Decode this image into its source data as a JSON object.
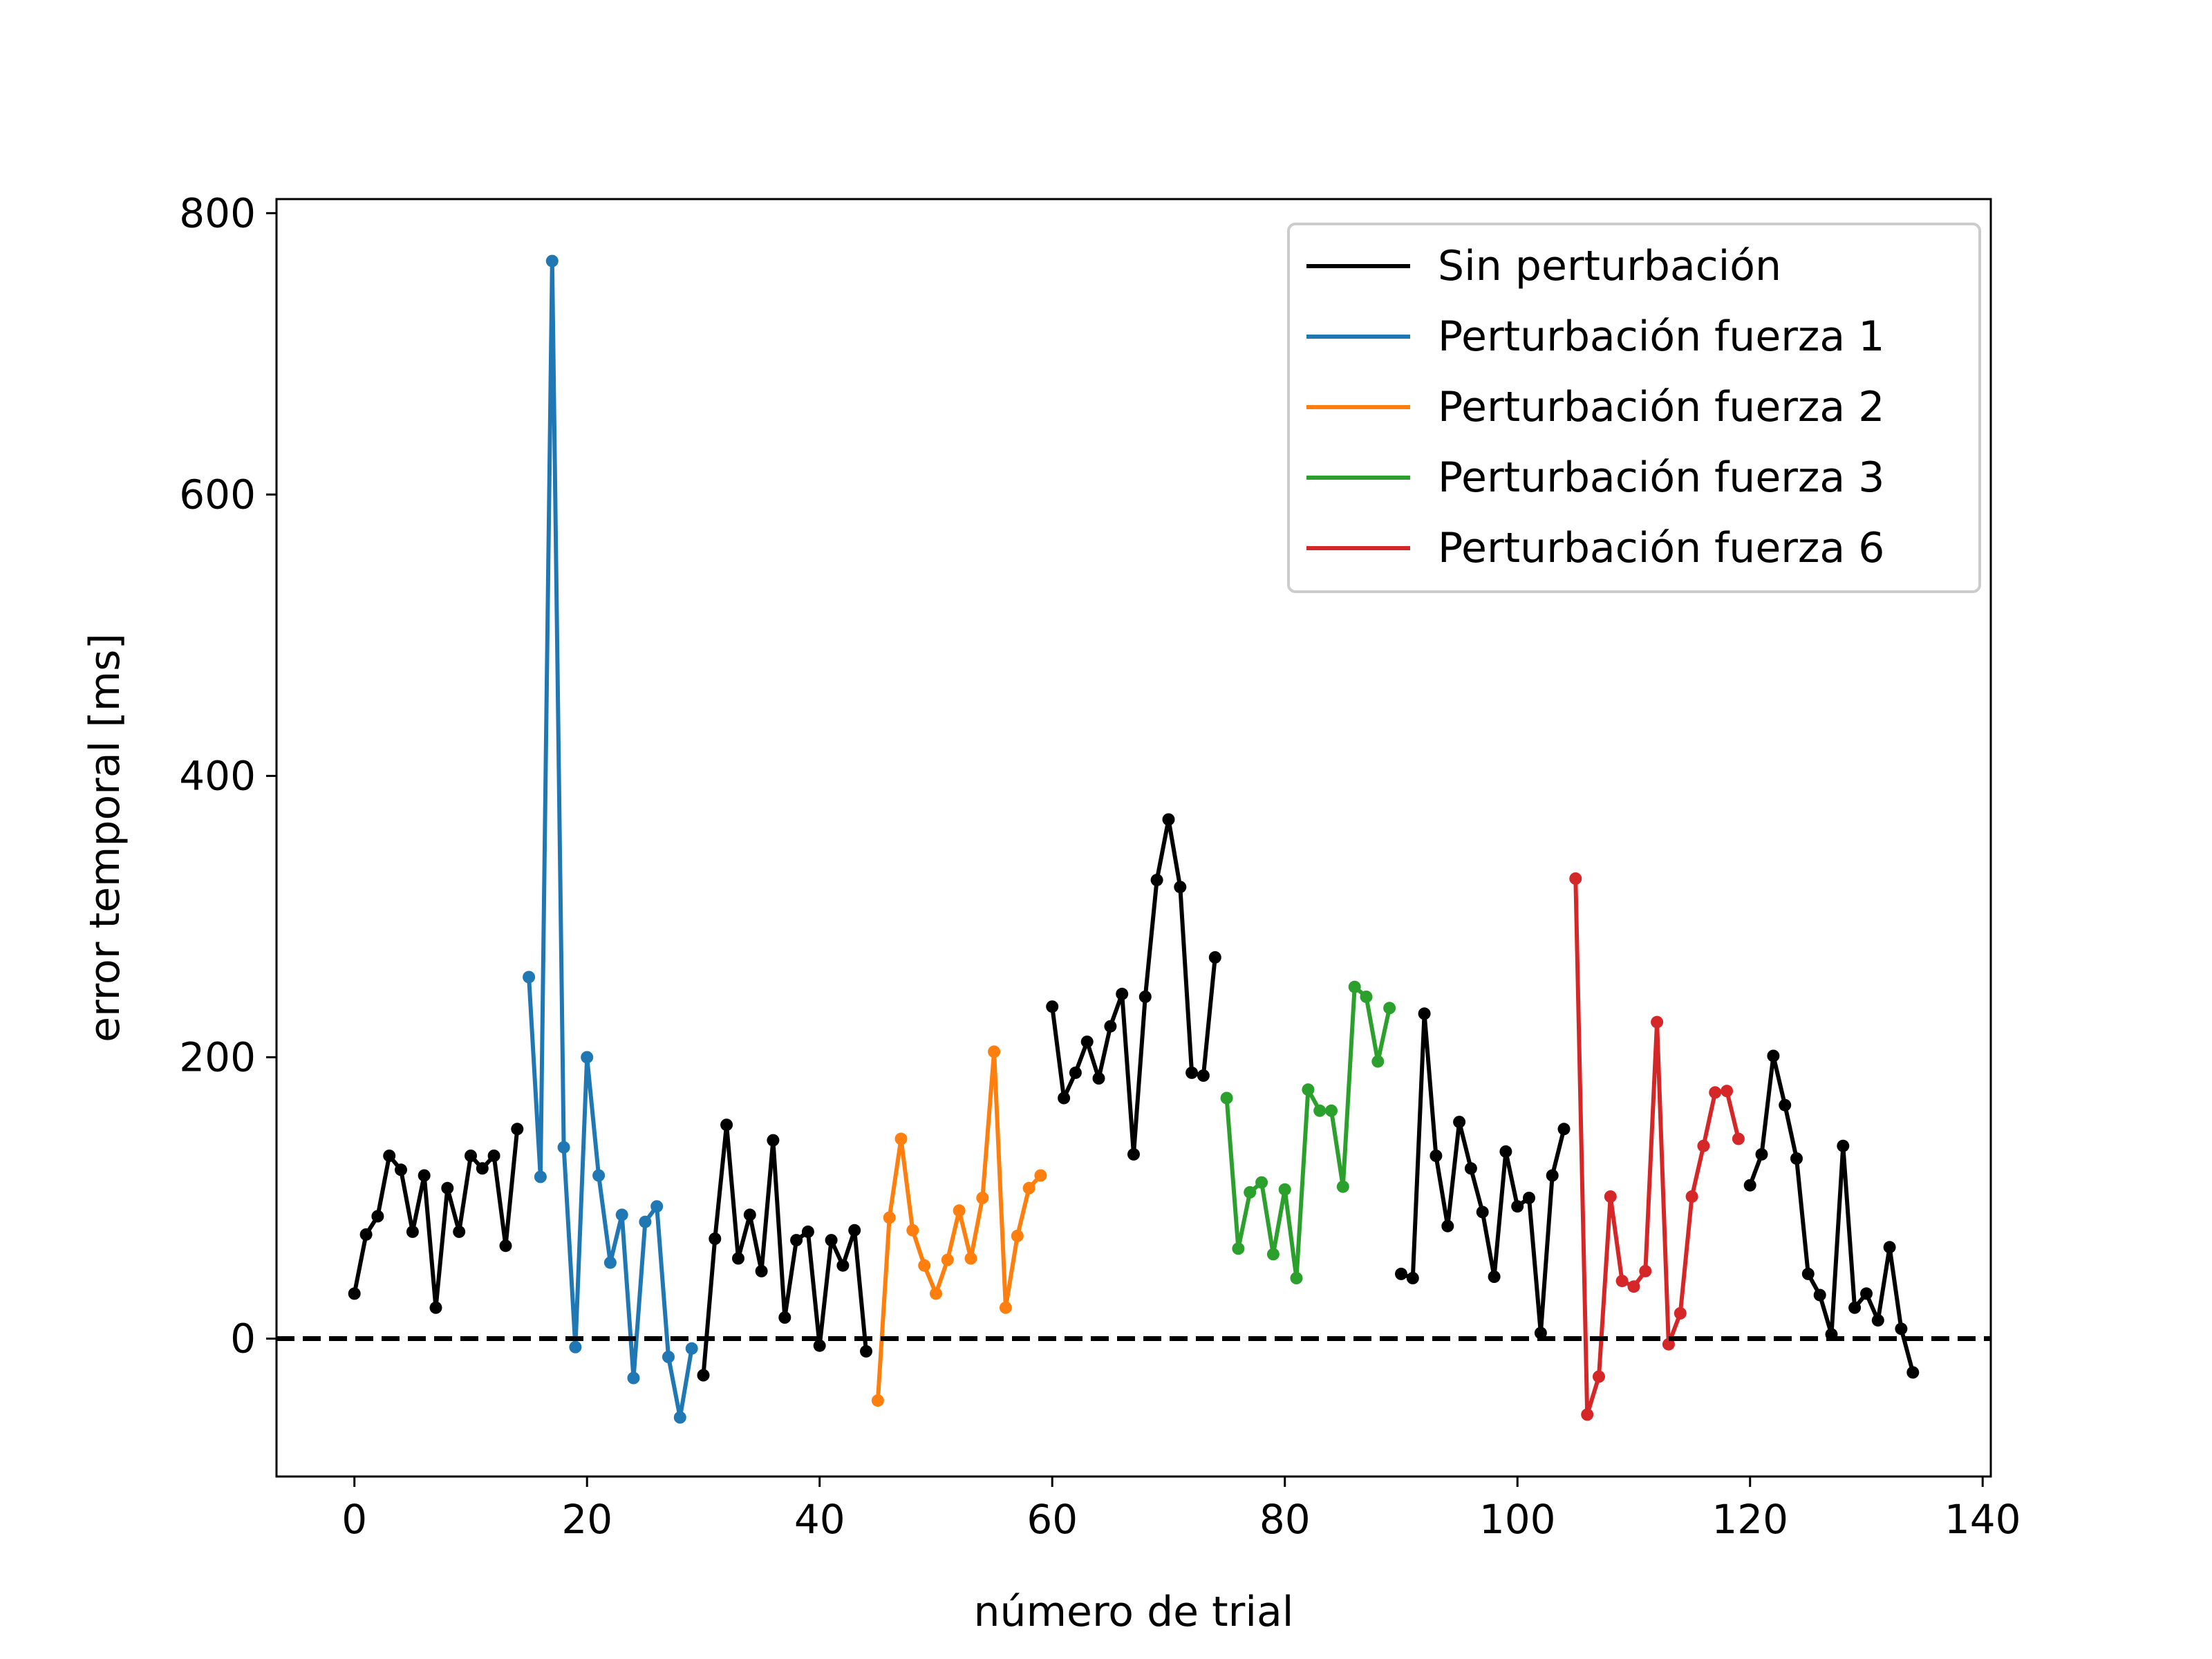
{
  "chart_data": {
    "type": "line",
    "title": "",
    "xlabel": "número de trial",
    "ylabel": "error temporal [ms]",
    "xlim": [
      -6.7,
      140.7
    ],
    "ylim": [
      -98,
      810
    ],
    "xticks": [
      0,
      20,
      40,
      60,
      80,
      100,
      120,
      140
    ],
    "yticks": [
      0,
      200,
      400,
      600,
      800
    ],
    "grid": false,
    "legend_position": "upper right",
    "reference_line": {
      "y": 0,
      "style": "dashed",
      "color": "#000000"
    },
    "legend": [
      "Sin perturbación",
      "Perturbación fuerza 1",
      "Perturbación fuerza 2",
      "Perturbación fuerza 3",
      "Perturbación fuerza 6"
    ],
    "series": [
      {
        "name": "Sin perturbación",
        "color": "#000000",
        "x": [
          0,
          1,
          2,
          3,
          4,
          5,
          6,
          7,
          8,
          9,
          10,
          11,
          12,
          13,
          14
        ],
        "y": [
          32,
          74,
          87,
          130,
          120,
          76,
          116,
          22,
          107,
          76,
          130,
          121,
          130,
          66,
          149
        ]
      },
      {
        "name": "Perturbación fuerza 1",
        "color": "#1f77b4",
        "x": [
          15,
          16,
          17,
          18,
          19,
          20,
          21,
          22,
          23,
          24,
          25,
          26,
          27,
          28,
          29
        ],
        "y": [
          257,
          115,
          766,
          136,
          -6,
          200,
          116,
          54,
          88,
          -28,
          83,
          94,
          -13,
          -56,
          -7
        ]
      },
      {
        "name": "Sin perturbación",
        "color": "#000000",
        "x": [
          30,
          31,
          32,
          33,
          34,
          35,
          36,
          37,
          38,
          39,
          40,
          41,
          42,
          43,
          44
        ],
        "y": [
          -26,
          71,
          152,
          57,
          88,
          48,
          141,
          15,
          70,
          76,
          -5,
          70,
          52,
          77,
          -9
        ]
      },
      {
        "name": "Perturbación fuerza 2",
        "color": "#ff7f0e",
        "x": [
          45,
          46,
          47,
          48,
          49,
          50,
          51,
          52,
          53,
          54,
          55,
          56,
          57,
          58,
          59
        ],
        "y": [
          -44,
          86,
          142,
          77,
          52,
          32,
          56,
          91,
          57,
          100,
          204,
          22,
          73,
          107,
          116
        ]
      },
      {
        "name": "Sin perturbación",
        "color": "#000000",
        "x": [
          60,
          61,
          62,
          63,
          64,
          65,
          66,
          67,
          68,
          69,
          70,
          71,
          72,
          73,
          74
        ],
        "y": [
          236,
          171,
          189,
          211,
          185,
          222,
          245,
          131,
          243,
          326,
          369,
          321,
          189,
          187,
          271
        ]
      },
      {
        "name": "Perturbación fuerza 3",
        "color": "#2ca02c",
        "x": [
          75,
          76,
          77,
          78,
          79,
          80,
          81,
          82,
          83,
          84,
          85,
          86,
          87,
          88,
          89
        ],
        "y": [
          171,
          64,
          104,
          111,
          60,
          106,
          43,
          177,
          162,
          162,
          108,
          250,
          243,
          197,
          235
        ]
      },
      {
        "name": "Sin perturbación",
        "color": "#000000",
        "x": [
          90,
          91,
          92,
          93,
          94,
          95,
          96,
          97,
          98,
          99,
          100,
          101,
          102,
          103,
          104
        ],
        "y": [
          46,
          43,
          231,
          130,
          80,
          154,
          121,
          90,
          44,
          133,
          94,
          100,
          4,
          116,
          149
        ]
      },
      {
        "name": "Perturbación fuerza 6",
        "color": "#d62728",
        "x": [
          105,
          106,
          107,
          108,
          109,
          110,
          111,
          112,
          113,
          114,
          115,
          116,
          117,
          118,
          119
        ],
        "y": [
          327,
          -54,
          -27,
          101,
          41,
          37,
          48,
          225,
          -4,
          18,
          101,
          137,
          175,
          176,
          142
        ]
      },
      {
        "name": "Sin perturbación",
        "color": "#000000",
        "x": [
          120,
          121,
          122,
          123,
          124,
          125,
          126,
          127,
          128,
          129,
          130,
          131,
          132,
          133,
          134
        ],
        "y": [
          109,
          131,
          201,
          166,
          128,
          46,
          31,
          3,
          137,
          22,
          32,
          13,
          65,
          7,
          -24
        ]
      }
    ]
  }
}
